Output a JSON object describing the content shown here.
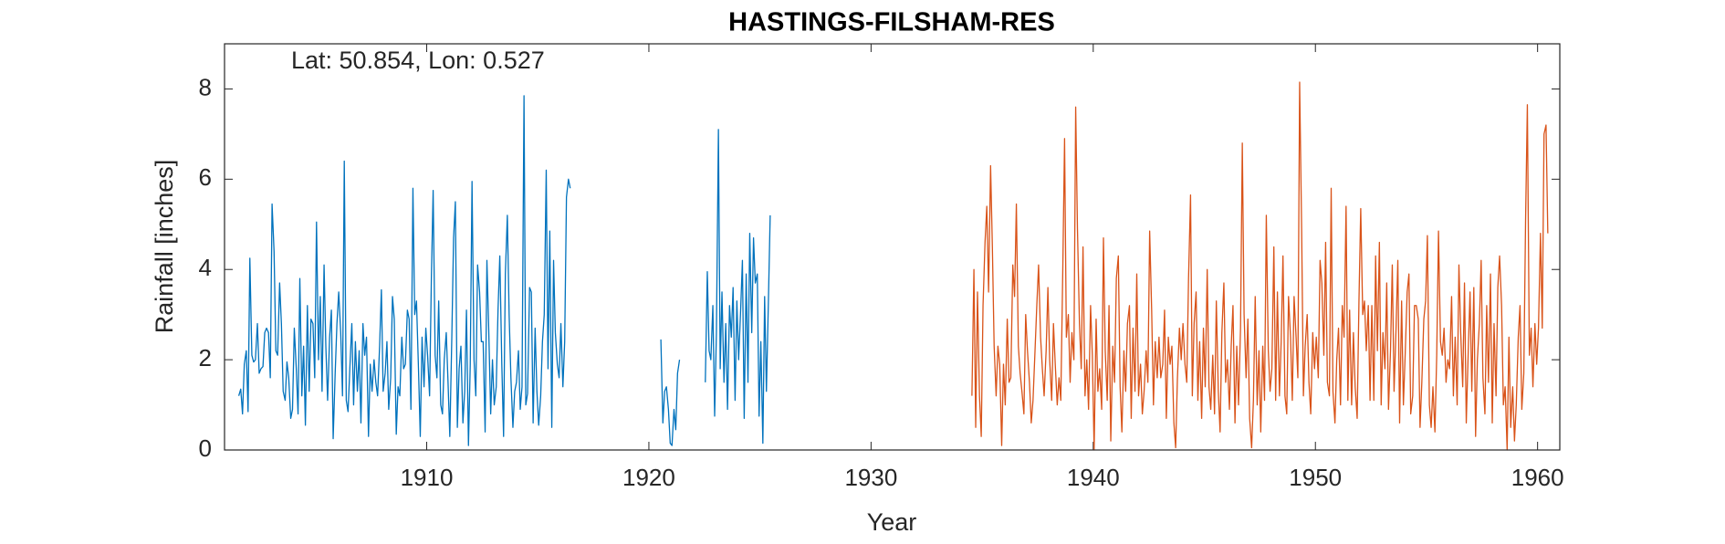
{
  "chart_data": {
    "type": "line",
    "title": "HASTINGS-FILSHAM-RES",
    "annotation": "Lat: 50.854, Lon: 0.527",
    "xlabel": "Year",
    "ylabel": "Rainfall [inches]",
    "xlim": [
      1900.9,
      1961
    ],
    "ylim": [
      0,
      9
    ],
    "xticks": [
      1910,
      1920,
      1930,
      1940,
      1950,
      1960
    ],
    "yticks": [
      0,
      2,
      4,
      6,
      8
    ],
    "grid": false,
    "series": [
      {
        "color": "#0072BD",
        "x": [
          1901.54,
          1901.63,
          1901.71,
          1901.79,
          1901.88,
          1901.96,
          1902.04,
          1902.13,
          1902.21,
          1902.29,
          1902.38,
          1902.46,
          1902.54,
          1902.63,
          1902.71,
          1902.79,
          1902.88,
          1902.96,
          1903.04,
          1903.13,
          1903.21,
          1903.29,
          1903.38,
          1903.46,
          1903.54,
          1903.63,
          1903.71,
          1903.79,
          1903.88,
          1903.96,
          1904.04,
          1904.13,
          1904.21,
          1904.29,
          1904.38,
          1904.46,
          1904.54,
          1904.63,
          1904.71,
          1904.79,
          1904.88,
          1904.96,
          1905.04,
          1905.13,
          1905.21,
          1905.29,
          1905.38,
          1905.46,
          1905.54,
          1905.63,
          1905.71,
          1905.79,
          1905.88,
          1905.96,
          1906.04,
          1906.13,
          1906.21,
          1906.29,
          1906.38,
          1906.46,
          1906.54,
          1906.63,
          1906.71,
          1906.79,
          1906.88,
          1906.96,
          1907.04,
          1907.13,
          1907.21,
          1907.29,
          1907.38,
          1907.46,
          1907.54,
          1907.63,
          1907.71,
          1907.79,
          1907.88,
          1907.96,
          1908.04,
          1908.13,
          1908.21,
          1908.29,
          1908.38,
          1908.46,
          1908.54,
          1908.63,
          1908.71,
          1908.79,
          1908.88,
          1908.96,
          1909.04,
          1909.13,
          1909.21,
          1909.29,
          1909.38,
          1909.46,
          1909.54,
          1909.63,
          1909.71,
          1909.79,
          1909.88,
          1909.96,
          1910.04,
          1910.13,
          1910.21,
          1910.29,
          1910.38,
          1910.46,
          1910.54,
          1910.63,
          1910.71,
          1910.79,
          1910.88,
          1910.96,
          1911.04,
          1911.13,
          1911.21,
          1911.29,
          1911.38,
          1911.46,
          1911.54,
          1911.63,
          1911.71,
          1911.79,
          1911.88,
          1911.96,
          1912.04,
          1912.13,
          1912.21,
          1912.29,
          1912.38,
          1912.46,
          1912.54,
          1912.63,
          1912.71,
          1912.79,
          1912.88,
          1912.96,
          1913.04,
          1913.13,
          1913.21,
          1913.29,
          1913.38,
          1913.46,
          1913.54,
          1913.63,
          1913.71,
          1913.79,
          1913.88,
          1913.96,
          1914.04,
          1914.13,
          1914.21,
          1914.29,
          1914.38,
          1914.46,
          1914.54,
          1914.63,
          1914.71,
          1914.79,
          1914.88,
          1914.96,
          1915.04,
          1915.13,
          1915.21,
          1915.29,
          1915.38,
          1915.46,
          1915.54,
          1915.63,
          1915.71,
          1915.79,
          1915.88,
          1915.96,
          1916.04,
          1916.13,
          1916.21,
          1916.29,
          1916.38,
          1916.46,
          1918.5,
          1920.54,
          1920.63,
          1920.71,
          1920.79,
          1920.88,
          1920.96,
          1921.04,
          1921.13,
          1921.21,
          1921.29,
          1921.38,
          1922.0,
          1922.54,
          1922.63,
          1922.71,
          1922.79,
          1922.88,
          1922.96,
          1923.04,
          1923.13,
          1923.21,
          1923.29,
          1923.38,
          1923.46,
          1923.54,
          1923.63,
          1923.71,
          1923.79,
          1923.88,
          1923.96,
          1924.04,
          1924.13,
          1924.21,
          1924.29,
          1924.38,
          1924.46,
          1924.54,
          1924.63,
          1924.71,
          1924.79,
          1924.88,
          1924.96,
          1925.04,
          1925.13,
          1925.21,
          1925.29,
          1925.38,
          1925.46
        ],
        "values": [
          1.2,
          1.35,
          0.8,
          1.9,
          2.2,
          0.85,
          4.25,
          2.1,
          1.95,
          2.0,
          2.8,
          1.7,
          1.8,
          1.85,
          2.6,
          2.7,
          2.6,
          1.6,
          5.45,
          4.4,
          2.2,
          2.1,
          3.7,
          2.8,
          1.3,
          1.1,
          1.95,
          1.6,
          0.7,
          0.9,
          2.7,
          1.8,
          0.8,
          3.8,
          1.2,
          2.3,
          0.55,
          3.2,
          1.3,
          2.9,
          2.8,
          1.6,
          5.05,
          2.0,
          3.4,
          1.3,
          4.1,
          2.3,
          1.1,
          2.5,
          3.1,
          0.25,
          1.7,
          2.8,
          3.5,
          2.6,
          1.2,
          6.4,
          1.1,
          0.85,
          1.8,
          2.8,
          1.0,
          2.4,
          1.3,
          2.2,
          0.6,
          2.8,
          2.1,
          2.5,
          0.3,
          1.9,
          1.3,
          2.0,
          1.5,
          1.2,
          2.3,
          3.55,
          1.3,
          1.7,
          2.4,
          0.9,
          1.6,
          3.4,
          2.9,
          0.35,
          1.4,
          1.2,
          2.5,
          1.8,
          1.9,
          3.1,
          2.9,
          0.9,
          5.8,
          3.0,
          3.3,
          1.8,
          0.3,
          2.5,
          1.4,
          2.7,
          2.1,
          1.2,
          3.8,
          5.75,
          2.1,
          1.6,
          3.3,
          1.0,
          0.8,
          2.0,
          2.6,
          1.5,
          0.3,
          2.5,
          4.7,
          5.5,
          0.5,
          1.8,
          2.3,
          0.6,
          1.3,
          3.1,
          0.1,
          1.9,
          5.95,
          2.0,
          1.2,
          4.1,
          3.5,
          2.4,
          2.4,
          0.4,
          4.2,
          2.7,
          0.8,
          2.0,
          1.0,
          1.4,
          3.1,
          4.3,
          1.9,
          0.3,
          3.9,
          5.2,
          3.0,
          1.6,
          0.5,
          1.3,
          1.5,
          2.2,
          0.9,
          1.4,
          7.85,
          1.0,
          1.25,
          3.6,
          3.5,
          0.6,
          2.7,
          1.3,
          0.55,
          1.2,
          2.4,
          3.0,
          6.2,
          1.8,
          4.85,
          0.5,
          4.2,
          2.6,
          1.9,
          1.6,
          2.8,
          1.4,
          2.4,
          5.6,
          6.0,
          5.8,
          null,
          2.45,
          0.6,
          1.3,
          1.4,
          0.9,
          0.15,
          0.1,
          0.9,
          0.45,
          1.7,
          2.0,
          null,
          1.5,
          3.95,
          2.2,
          2.0,
          3.2,
          0.75,
          2.6,
          7.1,
          1.8,
          3.5,
          1.5,
          2.8,
          0.9,
          3.2,
          2.5,
          3.6,
          1.1,
          3.3,
          2.0,
          3.1,
          4.2,
          0.7,
          3.9,
          1.5,
          4.8,
          2.6,
          4.7,
          3.7,
          3.9,
          0.75,
          2.4,
          0.15,
          3.4,
          1.3,
          3.3,
          5.2
        ]
      },
      {
        "color": "#D95319",
        "x": [
          1934.54,
          1934.63,
          1934.71,
          1934.79,
          1934.88,
          1934.96,
          1935.04,
          1935.13,
          1935.21,
          1935.29,
          1935.38,
          1935.46,
          1935.54,
          1935.63,
          1935.71,
          1935.79,
          1935.88,
          1935.96,
          1936.04,
          1936.13,
          1936.21,
          1936.29,
          1936.38,
          1936.46,
          1936.54,
          1936.63,
          1936.71,
          1936.79,
          1936.88,
          1936.96,
          1937.04,
          1937.13,
          1937.21,
          1937.29,
          1937.38,
          1937.46,
          1937.54,
          1937.63,
          1937.71,
          1937.79,
          1937.88,
          1937.96,
          1938.04,
          1938.13,
          1938.21,
          1938.29,
          1938.38,
          1938.46,
          1938.54,
          1938.63,
          1938.71,
          1938.79,
          1938.88,
          1938.96,
          1939.04,
          1939.13,
          1939.21,
          1939.29,
          1939.38,
          1939.46,
          1939.54,
          1939.63,
          1939.71,
          1939.79,
          1939.88,
          1939.96,
          1940.04,
          1940.13,
          1940.21,
          1940.29,
          1940.38,
          1940.46,
          1940.54,
          1940.63,
          1940.71,
          1940.79,
          1940.88,
          1940.96,
          1941.04,
          1941.13,
          1941.21,
          1941.29,
          1941.38,
          1941.46,
          1941.54,
          1941.63,
          1941.71,
          1941.79,
          1941.88,
          1941.96,
          1942.04,
          1942.13,
          1942.21,
          1942.29,
          1942.38,
          1942.46,
          1942.54,
          1942.63,
          1942.71,
          1942.79,
          1942.88,
          1942.96,
          1943.04,
          1943.13,
          1943.21,
          1943.29,
          1943.38,
          1943.46,
          1943.54,
          1943.63,
          1943.71,
          1943.79,
          1943.88,
          1943.96,
          1944.04,
          1944.13,
          1944.21,
          1944.29,
          1944.38,
          1944.46,
          1944.54,
          1944.63,
          1944.71,
          1944.79,
          1944.88,
          1944.96,
          1945.04,
          1945.13,
          1945.21,
          1945.29,
          1945.38,
          1945.46,
          1945.54,
          1945.63,
          1945.71,
          1945.79,
          1945.88,
          1945.96,
          1946.04,
          1946.13,
          1946.21,
          1946.29,
          1946.38,
          1946.46,
          1946.54,
          1946.63,
          1946.71,
          1946.79,
          1946.88,
          1946.96,
          1947.04,
          1947.13,
          1947.21,
          1947.29,
          1947.38,
          1947.46,
          1947.54,
          1947.63,
          1947.71,
          1947.79,
          1947.88,
          1947.96,
          1948.04,
          1948.13,
          1948.21,
          1948.29,
          1948.38,
          1948.46,
          1948.54,
          1948.63,
          1948.71,
          1948.79,
          1948.88,
          1948.96,
          1949.04,
          1949.13,
          1949.21,
          1949.29,
          1949.38,
          1949.46,
          1949.54,
          1949.63,
          1949.71,
          1949.79,
          1949.88,
          1949.96,
          1950.04,
          1950.13,
          1950.21,
          1950.29,
          1950.38,
          1950.46,
          1950.54,
          1950.63,
          1950.71,
          1950.79,
          1950.88,
          1950.96,
          1951.04,
          1951.13,
          1951.21,
          1951.29,
          1951.38,
          1951.46,
          1951.54,
          1951.63,
          1951.71,
          1951.79,
          1951.88,
          1951.96,
          1952.04,
          1952.13,
          1952.21,
          1952.29,
          1952.38,
          1952.46,
          1952.54,
          1952.63,
          1952.71,
          1952.79,
          1952.88,
          1952.96,
          1953.04,
          1953.13,
          1953.21,
          1953.29,
          1953.38,
          1953.46,
          1953.54,
          1953.63,
          1953.71,
          1953.79,
          1953.88,
          1953.96,
          1954.04,
          1954.13,
          1954.21,
          1954.29,
          1954.38,
          1954.46,
          1954.54,
          1954.63,
          1954.71,
          1954.79,
          1954.88,
          1954.96,
          1955.04,
          1955.13,
          1955.21,
          1955.29,
          1955.38,
          1955.46,
          1955.54,
          1955.63,
          1955.71,
          1955.79,
          1955.88,
          1955.96,
          1956.04,
          1956.13,
          1956.21,
          1956.29,
          1956.38,
          1956.46,
          1956.54,
          1956.63,
          1956.71,
          1956.79,
          1956.88,
          1956.96,
          1957.04,
          1957.13,
          1957.21,
          1957.29,
          1957.38,
          1957.46,
          1957.54,
          1957.63,
          1957.71,
          1957.79,
          1957.88,
          1957.96,
          1958.04,
          1958.13,
          1958.21,
          1958.29,
          1958.38,
          1958.46,
          1958.54,
          1958.63,
          1958.71,
          1958.79,
          1958.88,
          1958.96,
          1959.04,
          1959.13,
          1959.21,
          1959.29,
          1959.38,
          1959.46,
          1959.54,
          1959.63,
          1959.71,
          1959.79,
          1959.88,
          1959.96,
          1960.04,
          1960.13,
          1960.21,
          1960.29,
          1960.38,
          1960.46
        ],
        "values": [
          1.2,
          4.0,
          0.5,
          3.5,
          1.2,
          0.3,
          3.2,
          4.6,
          5.4,
          3.5,
          6.3,
          4.5,
          2.3,
          1.2,
          2.3,
          1.9,
          0.1,
          1.9,
          1.0,
          2.9,
          1.5,
          1.6,
          4.1,
          3.4,
          5.45,
          2.3,
          1.7,
          1.3,
          0.8,
          3.0,
          2.2,
          1.5,
          0.6,
          1.1,
          2.2,
          3.2,
          4.1,
          2.5,
          1.8,
          1.2,
          2.2,
          3.6,
          2.0,
          1.1,
          2.8,
          1.9,
          1.0,
          1.6,
          1.1,
          4.0,
          6.9,
          2.5,
          3.0,
          1.5,
          2.6,
          2.0,
          7.6,
          4.9,
          2.8,
          1.8,
          4.5,
          1.2,
          2.0,
          0.9,
          3.2,
          2.1,
          0.0,
          2.9,
          1.3,
          1.8,
          0.9,
          4.7,
          2.2,
          1.1,
          3.2,
          0.2,
          2.3,
          1.5,
          3.8,
          4.3,
          1.4,
          0.4,
          2.2,
          1.3,
          2.8,
          3.2,
          0.7,
          2.7,
          1.3,
          3.9,
          1.2,
          1.9,
          0.8,
          1.3,
          2.2,
          1.5,
          4.85,
          3.1,
          1.0,
          2.4,
          1.6,
          2.5,
          1.6,
          1.9,
          3.1,
          0.7,
          2.5,
          1.9,
          2.3,
          0.6,
          0.05,
          1.6,
          2.7,
          2.0,
          2.8,
          1.9,
          1.5,
          3.8,
          5.65,
          1.2,
          2.8,
          3.5,
          1.1,
          2.4,
          0.7,
          2.7,
          1.4,
          4.0,
          1.4,
          0.9,
          2.1,
          0.8,
          3.3,
          1.3,
          0.4,
          2.6,
          3.7,
          1.5,
          2.0,
          0.9,
          2.3,
          3.2,
          0.6,
          2.3,
          1.0,
          2.7,
          6.8,
          3.0,
          1.6,
          2.9,
          0.7,
          0.05,
          1.1,
          3.4,
          1.0,
          2.2,
          0.4,
          2.3,
          1.1,
          5.2,
          2.2,
          1.3,
          1.8,
          4.5,
          1.1,
          3.5,
          1.2,
          2.4,
          4.3,
          1.2,
          0.8,
          3.4,
          2.5,
          1.1,
          3.4,
          2.5,
          1.6,
          8.15,
          4.9,
          1.2,
          2.3,
          3.0,
          1.5,
          0.8,
          2.6,
          1.8,
          2.5,
          1.6,
          4.2,
          3.7,
          2.1,
          4.6,
          1.5,
          1.2,
          5.8,
          1.3,
          0.6,
          2.0,
          2.7,
          1.0,
          3.2,
          2.5,
          5.4,
          1.1,
          3.1,
          1.0,
          2.6,
          1.4,
          0.7,
          3.3,
          5.35,
          3.0,
          3.3,
          2.2,
          3.2,
          1.1,
          3.2,
          1.1,
          4.3,
          2.2,
          4.6,
          1.0,
          2.6,
          1.8,
          3.7,
          0.9,
          2.2,
          4.1,
          1.3,
          2.7,
          4.2,
          0.6,
          3.3,
          1.0,
          2.1,
          3.5,
          3.9,
          0.8,
          1.2,
          3.2,
          3.2,
          2.9,
          0.5,
          1.5,
          2.9,
          3.3,
          4.75,
          1.0,
          0.5,
          1.4,
          0.4,
          2.1,
          4.85,
          2.4,
          2.1,
          2.7,
          1.5,
          2.0,
          1.8,
          3.4,
          1.2,
          2.5,
          1.0,
          4.1,
          2.6,
          1.4,
          3.7,
          0.6,
          2.2,
          3.5,
          1.3,
          3.6,
          0.3,
          2.0,
          2.8,
          4.2,
          1.6,
          0.8,
          3.2,
          1.5,
          3.9,
          0.6,
          2.8,
          1.2,
          3.6,
          4.3,
          3.2,
          1.0,
          1.4,
          0.0,
          2.5,
          0.5,
          1.4,
          0.2,
          1.0,
          2.5,
          3.2,
          0.9,
          1.7,
          5.1,
          7.65,
          2.1,
          2.7,
          1.4,
          2.8,
          1.9,
          2.7,
          4.8,
          2.7,
          7.0,
          7.2,
          4.8
        ]
      }
    ]
  }
}
